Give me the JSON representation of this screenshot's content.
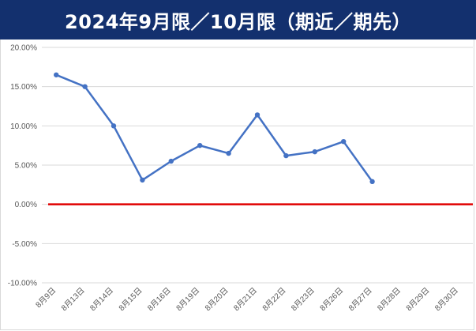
{
  "title": "2024年9月限／10月限（期近／期先）",
  "colors": {
    "title_bg": "#13306e",
    "title_text": "#ffffff",
    "series_line": "#4472c4",
    "zero_line": "#e00000",
    "grid": "#d9d9d9",
    "tick_text": "#595959"
  },
  "chart_data": {
    "type": "line",
    "title": "2024年9月限／10月限（期近／期先）",
    "xlabel": "",
    "ylabel": "",
    "ylim": [
      -10,
      20
    ],
    "yticks": [
      20,
      15,
      10,
      5,
      0,
      -5,
      -10
    ],
    "ytick_labels": [
      "20.00%",
      "15.00%",
      "10.00%",
      "5.00%",
      "0.00%",
      "-5.00%",
      "-10.00%"
    ],
    "grid": true,
    "legend": "none",
    "categories": [
      "8月9日",
      "8月13日",
      "8月14日",
      "8月15日",
      "8月16日",
      "8月19日",
      "8月20日",
      "8月21日",
      "8月22日",
      "8月23日",
      "8月26日",
      "8月27日",
      "8月28日",
      "8月29日",
      "8月30日"
    ],
    "series": [
      {
        "values": [
          16.5,
          15.0,
          10.0,
          3.1,
          5.5,
          7.5,
          6.5,
          11.4,
          6.2,
          6.7,
          8.0,
          2.9,
          null,
          null,
          null
        ]
      }
    ],
    "reference_line": {
      "y": 0
    }
  }
}
